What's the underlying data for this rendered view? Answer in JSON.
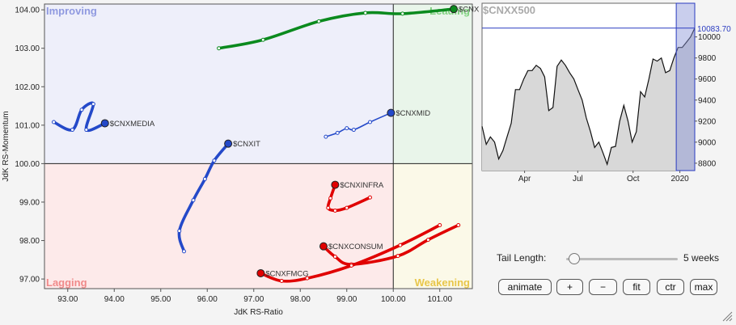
{
  "chart_data": [
    {
      "type": "scatter",
      "title": "",
      "xlabel": "JdK RS-Ratio",
      "ylabel": "JdK RS-Momentum",
      "xlim": [
        92.5,
        101.7
      ],
      "ylim": [
        96.75,
        104.15
      ],
      "x_ticks": [
        "93.00",
        "94.00",
        "95.00",
        "96.00",
        "97.00",
        "98.00",
        "99.00",
        "100.00",
        "101.00"
      ],
      "y_ticks": [
        "97.00",
        "98.00",
        "99.00",
        "100.00",
        "101.00",
        "102.00",
        "103.00",
        "104.00"
      ],
      "grid": false,
      "quadrants": {
        "improving": "Improving",
        "leading": "Leading",
        "lagging": "Lagging",
        "weakening": "Weakening"
      },
      "series": [
        {
          "name": "$CNXMETAL",
          "color": "#0b8a1e",
          "points": [
            [
              96.25,
              103.0
            ],
            [
              97.2,
              103.22
            ],
            [
              98.4,
              103.7
            ],
            [
              99.4,
              103.92
            ],
            [
              100.2,
              103.9
            ],
            [
              101.3,
              104.02
            ]
          ]
        },
        {
          "name": "$CNXMEDIA",
          "color": "#2449c9",
          "points": [
            [
              92.7,
              101.08
            ],
            [
              93.1,
              100.88
            ],
            [
              93.3,
              101.4
            ],
            [
              93.55,
              101.55
            ],
            [
              93.4,
              100.88
            ],
            [
              93.8,
              101.05
            ]
          ]
        },
        {
          "name": "$CNXMID",
          "color": "#2449c9",
          "points": [
            [
              98.55,
              100.7
            ],
            [
              98.8,
              100.8
            ],
            [
              99.0,
              100.92
            ],
            [
              99.15,
              100.88
            ],
            [
              99.5,
              101.08
            ],
            [
              99.95,
              101.32
            ]
          ]
        },
        {
          "name": "$CNXIT",
          "color": "#2449c9",
          "points": [
            [
              95.5,
              97.72
            ],
            [
              95.4,
              98.25
            ],
            [
              95.7,
              99.05
            ],
            [
              95.95,
              99.6
            ],
            [
              96.15,
              100.08
            ],
            [
              96.45,
              100.52
            ]
          ]
        },
        {
          "name": "$CNXINFRA",
          "color": "#e00000",
          "points": [
            [
              99.5,
              99.12
            ],
            [
              99.0,
              98.85
            ],
            [
              98.75,
              98.78
            ],
            [
              98.6,
              98.85
            ],
            [
              98.65,
              99.1
            ],
            [
              98.75,
              99.45
            ]
          ]
        },
        {
          "name": "$CNXCONSUM",
          "color": "#e00000",
          "points": [
            [
              101.4,
              98.4
            ],
            [
              100.75,
              98.02
            ],
            [
              100.1,
              97.6
            ],
            [
              99.1,
              97.38
            ],
            [
              98.75,
              97.58
            ],
            [
              98.5,
              97.85
            ]
          ]
        },
        {
          "name": "$CNXFMCG",
          "color": "#e00000",
          "points": [
            [
              101.0,
              98.4
            ],
            [
              100.15,
              97.88
            ],
            [
              99.1,
              97.35
            ],
            [
              98.15,
              97.02
            ],
            [
              97.6,
              96.95
            ],
            [
              97.15,
              97.15
            ]
          ]
        }
      ]
    },
    {
      "type": "area",
      "title": "$CNXX500",
      "x_tick_labels": [
        "Apr",
        "Jul",
        "Oct",
        "2020"
      ],
      "x_tick_pos": [
        0.2,
        0.45,
        0.71,
        0.93
      ],
      "y_ticks": [
        "8800",
        "9000",
        "9200",
        "9400",
        "9600",
        "9800",
        "10000"
      ],
      "ylim": [
        8730,
        10320
      ],
      "last_value_label": "10083.70",
      "values": [
        9150,
        8980,
        9050,
        9000,
        8840,
        8920,
        9050,
        9180,
        9500,
        9500,
        9600,
        9680,
        9680,
        9730,
        9700,
        9620,
        9300,
        9330,
        9720,
        9780,
        9730,
        9660,
        9600,
        9500,
        9400,
        9230,
        9100,
        8950,
        9000,
        8900,
        8790,
        8950,
        8960,
        9200,
        9350,
        9200,
        9000,
        9100,
        9480,
        9430,
        9600,
        9790,
        9770,
        9800,
        9660,
        9680,
        9800,
        9900,
        9900,
        9950,
        10000,
        10083.7
      ]
    }
  ],
  "controls": {
    "tail_length_label": "Tail Length:",
    "tail_length_value": "5 weeks",
    "tail_length_fraction": 0.0,
    "buttons": {
      "animate": "animate",
      "plus": "+",
      "minus": "−",
      "fit": "fit",
      "ctr": "ctr",
      "max": "max"
    }
  },
  "colors": {
    "improving_bg": "#eeeffa",
    "leading_bg": "#e9f5ea",
    "lagging_bg": "#fdeaea",
    "weakening_bg": "#fbf9e8",
    "improving_text": "#8f99e0",
    "lagging_text": "#f08a8a",
    "weakening_text": "#e8c64a",
    "leading_text": "#7fd07f"
  }
}
